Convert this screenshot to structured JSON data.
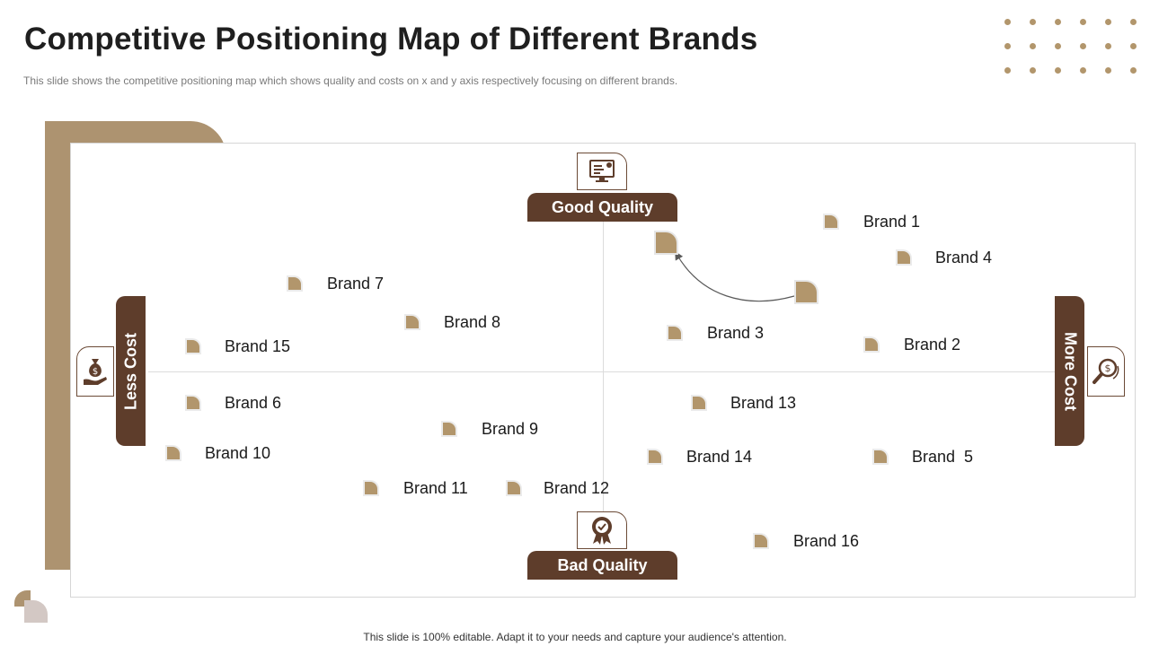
{
  "title": "Competitive Positioning Map of Different Brands",
  "subtitle": "This slide shows the competitive positioning map which shows quality and costs on x and y axis respectively focusing on different  brands.",
  "axes": {
    "top": "Good Quality",
    "bottom": "Bad Quality",
    "left": "Less Cost",
    "right": "More Cost"
  },
  "brands": [
    {
      "label": "Brand 1"
    },
    {
      "label": "Brand 4"
    },
    {
      "label": "Brand 7"
    },
    {
      "label": "Brand 8"
    },
    {
      "label": "Brand 15"
    },
    {
      "label": "Brand 3"
    },
    {
      "label": "Brand 2"
    },
    {
      "label": "Brand 6"
    },
    {
      "label": "Brand 13"
    },
    {
      "label": "Brand 9"
    },
    {
      "label": "Brand 10"
    },
    {
      "label": "Brand 14"
    },
    {
      "label": "Brand  5"
    },
    {
      "label": "Brand 11"
    },
    {
      "label": "Brand 12"
    },
    {
      "label": "Brand 16"
    }
  ],
  "footer": "This slide is 100% editable. Adapt it to your needs and capture your audience's attention.",
  "colors": {
    "accent_dark": "#5e3d2b",
    "accent_light": "#b2966c"
  },
  "icons": {
    "good": "monitor-settings-icon",
    "bad": "award-badge-icon",
    "less": "money-bag-hand-icon",
    "more": "dollar-search-icon"
  }
}
